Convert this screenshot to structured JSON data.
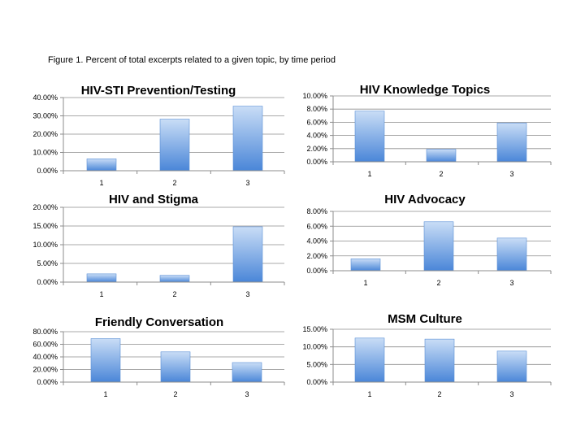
{
  "figure": {
    "caption": "Figure 1. Percent of total excerpts related to a given topic, by time period"
  },
  "colors": {
    "bar_top": "#c9ddf6",
    "bar_bottom": "#4a86d8",
    "bar_edge": "#5b8fd6"
  },
  "chart_data": [
    {
      "type": "bar",
      "title": "HIV-STI Prevention/Testing",
      "categories": [
        "1",
        "2",
        "3"
      ],
      "values": [
        6.5,
        28.2,
        35.3
      ],
      "ylim": [
        0,
        40
      ],
      "yticks": [
        "0.00%",
        "10.00%",
        "20.00%",
        "30.00%",
        "40.00%"
      ],
      "grid": true
    },
    {
      "type": "bar",
      "title": "HIV Knowledge Topics",
      "categories": [
        "1",
        "2",
        "3"
      ],
      "values": [
        7.7,
        1.9,
        5.9
      ],
      "ylim": [
        0,
        10
      ],
      "yticks": [
        "0.00%",
        "2.00%",
        "4.00%",
        "6.00%",
        "8.00%",
        "10.00%"
      ],
      "grid": true
    },
    {
      "type": "bar",
      "title": "HIV and Stigma",
      "categories": [
        "1",
        "2",
        "3"
      ],
      "values": [
        2.2,
        1.8,
        14.8
      ],
      "ylim": [
        0,
        20
      ],
      "yticks": [
        "0.00%",
        "5.00%",
        "10.00%",
        "15.00%",
        "20.00%"
      ],
      "grid": true
    },
    {
      "type": "bar",
      "title": "HIV Advocacy",
      "categories": [
        "1",
        "2",
        "3"
      ],
      "values": [
        1.6,
        6.6,
        4.4
      ],
      "ylim": [
        0,
        8
      ],
      "yticks": [
        "0.00%",
        "2.00%",
        "4.00%",
        "6.00%",
        "8.00%"
      ],
      "grid": true
    },
    {
      "type": "bar",
      "title": "Friendly Conversation",
      "categories": [
        "1",
        "2",
        "3"
      ],
      "values": [
        69,
        48,
        31
      ],
      "ylim": [
        0,
        80
      ],
      "yticks": [
        "0.00%",
        "20.00%",
        "40.00%",
        "60.00%",
        "80.00%"
      ],
      "grid": true
    },
    {
      "type": "bar",
      "title": "MSM Culture",
      "categories": [
        "1",
        "2",
        "3"
      ],
      "values": [
        12.5,
        12.2,
        8.8
      ],
      "ylim": [
        0,
        15
      ],
      "yticks": [
        "0.00%",
        "5.00%",
        "10.00%",
        "15.00%"
      ],
      "grid": true
    }
  ]
}
